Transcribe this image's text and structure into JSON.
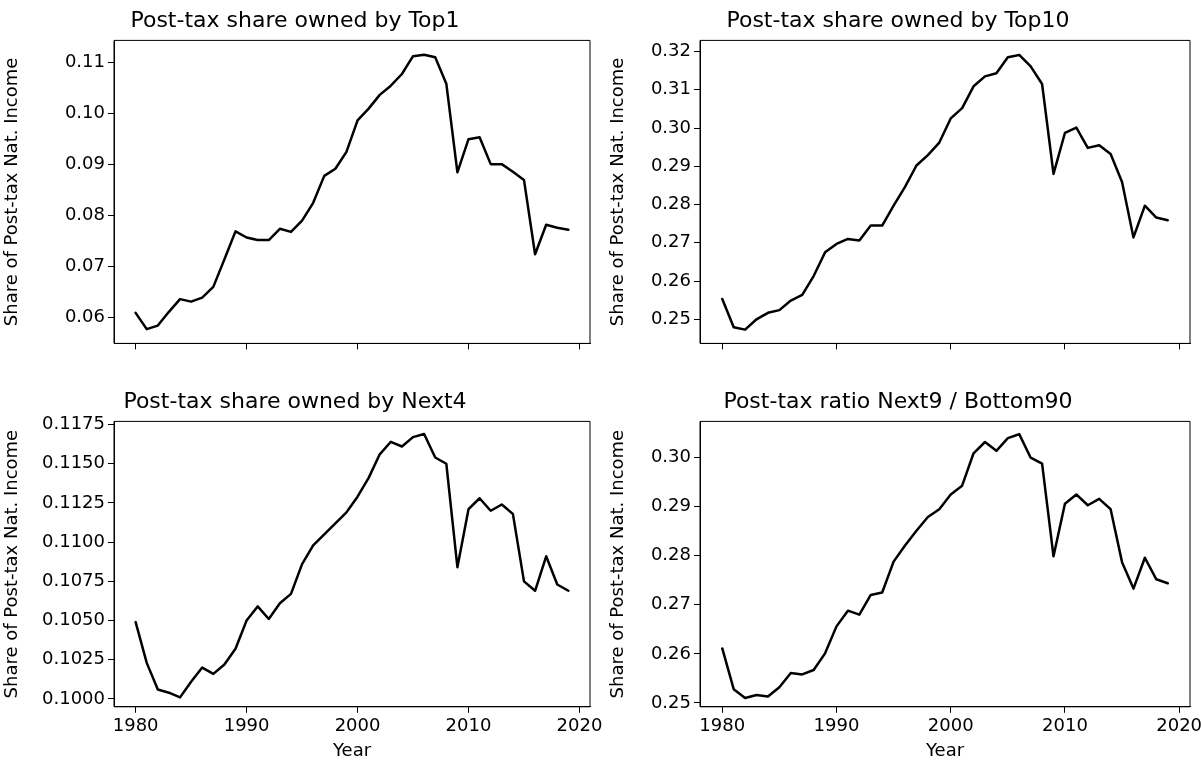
{
  "chart_data": [
    {
      "type": "line",
      "title": "Post-tax share owned by Top1",
      "ylabel": "Share of Post-tax Nat. Income",
      "x": [
        1980,
        1981,
        1982,
        1983,
        1984,
        1985,
        1986,
        1987,
        1988,
        1989,
        1990,
        1991,
        1992,
        1993,
        1994,
        1995,
        1996,
        1997,
        1998,
        1999,
        2000,
        2001,
        2002,
        2003,
        2004,
        2005,
        2006,
        2007,
        2008,
        2009,
        2010,
        2011,
        2012,
        2013,
        2014,
        2015,
        2016,
        2017,
        2018,
        2019
      ],
      "series": [
        {
          "color": "#000000",
          "values": [
            0.0609,
            0.0577,
            0.0584,
            0.0611,
            0.0636,
            0.0631,
            0.0639,
            0.066,
            0.0714,
            0.0769,
            0.0757,
            0.0752,
            0.0752,
            0.0774,
            0.0768,
            0.079,
            0.0825,
            0.0878,
            0.0892,
            0.0925,
            0.0987,
            0.101,
            0.1037,
            0.1055,
            0.1078,
            0.1113,
            0.1116,
            0.1111,
            0.1059,
            0.0885,
            0.095,
            0.0954,
            0.0901,
            0.0901,
            0.0886,
            0.087,
            0.0724,
            0.0782,
            0.0776,
            0.0772
          ]
        }
      ],
      "xlim": [
        1978.05,
        2020.95
      ],
      "xticks": [
        {
          "value": 1980,
          "label": null
        },
        {
          "value": 1990,
          "label": null
        },
        {
          "value": 2000,
          "label": null
        },
        {
          "value": 2010,
          "label": null
        },
        {
          "value": 2020,
          "label": null
        }
      ],
      "ylim": [
        0.0549,
        0.1144
      ],
      "yticks": [
        0.06,
        0.07,
        0.08,
        0.09,
        {
          "value": 0.1,
          "label": "0.10"
        },
        0.11
      ],
      "tick_labels": "y",
      "grid": false,
      "legend": false,
      "marker": "none",
      "line_style": "solid"
    },
    {
      "type": "line",
      "title": "Post-tax share owned by Top10",
      "ylabel": "Share of Post-tax Nat. Income",
      "x": [
        1980,
        1981,
        1982,
        1983,
        1984,
        1985,
        1986,
        1987,
        1988,
        1989,
        1990,
        1991,
        1992,
        1993,
        1994,
        1995,
        1996,
        1997,
        1998,
        1999,
        2000,
        2001,
        2002,
        2003,
        2004,
        2005,
        2006,
        2007,
        2008,
        2009,
        2010,
        2011,
        2012,
        2013,
        2014,
        2015,
        2016,
        2017,
        2018,
        2019
      ],
      "series": [
        {
          "color": "#000000",
          "values": [
            0.2553,
            0.2479,
            0.2473,
            0.25,
            0.2517,
            0.2524,
            0.2549,
            0.2564,
            0.2613,
            0.2675,
            0.2697,
            0.271,
            0.2706,
            0.2745,
            0.2745,
            0.2797,
            0.2846,
            0.2902,
            0.2929,
            0.2962,
            0.3025,
            0.3052,
            0.3109,
            0.3135,
            0.3143,
            0.3185,
            0.3191,
            0.3161,
            0.3115,
            0.288,
            0.2987,
            0.3001,
            0.2948,
            0.2955,
            0.2932,
            0.2859,
            0.2714,
            0.2797,
            0.2766,
            0.2759
          ]
        }
      ],
      "xlim": [
        1978.05,
        2020.95
      ],
      "xticks": [
        {
          "value": 1980,
          "label": null
        },
        {
          "value": 1990,
          "label": null
        },
        {
          "value": 2000,
          "label": null
        },
        {
          "value": 2010,
          "label": null
        },
        {
          "value": 2020,
          "label": null
        }
      ],
      "ylim": [
        0.2437,
        0.3229
      ],
      "yticks": [
        0.25,
        0.26,
        0.27,
        0.28,
        0.29,
        {
          "value": 0.3,
          "label": "0.30"
        },
        0.31,
        0.32
      ],
      "tick_labels": "y",
      "grid": false,
      "legend": false,
      "marker": "none",
      "line_style": "solid"
    },
    {
      "type": "line",
      "title": "Post-tax share owned by Next4",
      "xlabel": "Year",
      "ylabel": "Share of Post-tax Nat. Income",
      "x": [
        1980,
        1981,
        1982,
        1983,
        1984,
        1985,
        1986,
        1987,
        1988,
        1989,
        1990,
        1991,
        1992,
        1993,
        1994,
        1995,
        1996,
        1997,
        1998,
        1999,
        2000,
        2001,
        2002,
        2003,
        2004,
        2005,
        2006,
        2007,
        2008,
        2009,
        2010,
        2011,
        2012,
        2013,
        2014,
        2015,
        2016,
        2017,
        2018,
        2019
      ],
      "series": [
        {
          "color": "#000000",
          "values": [
            0.1049,
            0.1023,
            0.1006,
            0.1004,
            0.1001,
            0.1011,
            0.102,
            0.1016,
            0.1022,
            0.1032,
            0.105,
            0.1059,
            0.1051,
            0.1061,
            0.1067,
            0.1086,
            0.1098,
            0.1105,
            0.1112,
            0.1119,
            0.1129,
            0.1141,
            0.1156,
            0.1164,
            0.1161,
            0.1167,
            0.1169,
            0.1154,
            0.115,
            0.1084,
            0.1121,
            0.1128,
            0.112,
            0.1124,
            0.1118,
            0.1075,
            0.1069,
            0.1091,
            0.1073,
            0.1069
          ]
        }
      ],
      "xlim": [
        1978.05,
        2020.95
      ],
      "xticks": [
        1980,
        1990,
        2000,
        2010,
        2020
      ],
      "ylim": [
        0.0995,
        0.1177
      ],
      "yticks": [
        {
          "value": 0.1,
          "label": "0.1000"
        },
        0.1025,
        {
          "value": 0.105,
          "label": "0.1050"
        },
        0.1075,
        {
          "value": 0.11,
          "label": "0.1100"
        },
        0.1125,
        {
          "value": 0.115,
          "label": "0.1150"
        },
        0.1175
      ],
      "grid": false,
      "legend": false,
      "marker": "none",
      "line_style": "solid"
    },
    {
      "type": "line",
      "title": "Post-tax ratio Next9 / Bottom90",
      "xlabel": "Year",
      "ylabel": "Share of Post-tax Nat. Income",
      "x": [
        1980,
        1981,
        1982,
        1983,
        1984,
        1985,
        1986,
        1987,
        1988,
        1989,
        1990,
        1991,
        1992,
        1993,
        1994,
        1995,
        1996,
        1997,
        1998,
        1999,
        2000,
        2001,
        2002,
        2003,
        2004,
        2005,
        2006,
        2007,
        2008,
        2009,
        2010,
        2011,
        2012,
        2013,
        2014,
        2015,
        2016,
        2017,
        2018,
        2019
      ],
      "series": [
        {
          "color": "#000000",
          "values": [
            0.2611,
            0.2528,
            0.251,
            0.2516,
            0.2513,
            0.2532,
            0.2561,
            0.2558,
            0.2567,
            0.2601,
            0.2656,
            0.2688,
            0.268,
            0.272,
            0.2725,
            0.2788,
            0.2821,
            0.2851,
            0.2879,
            0.2895,
            0.2925,
            0.2943,
            0.3009,
            0.3032,
            0.3014,
            0.304,
            0.3048,
            0.3,
            0.2988,
            0.2799,
            0.2906,
            0.2925,
            0.2903,
            0.2916,
            0.2895,
            0.2787,
            0.2733,
            0.2796,
            0.2752,
            0.2744
          ]
        }
      ],
      "xlim": [
        1978.05,
        2020.95
      ],
      "xticks": [
        1980,
        1990,
        2000,
        2010,
        2020
      ],
      "ylim": [
        0.2492,
        0.3074
      ],
      "yticks": [
        0.25,
        0.26,
        0.27,
        0.28,
        0.29,
        {
          "value": 0.3,
          "label": "0.30"
        }
      ],
      "grid": false,
      "legend": false,
      "marker": "none",
      "line_style": "solid"
    }
  ]
}
